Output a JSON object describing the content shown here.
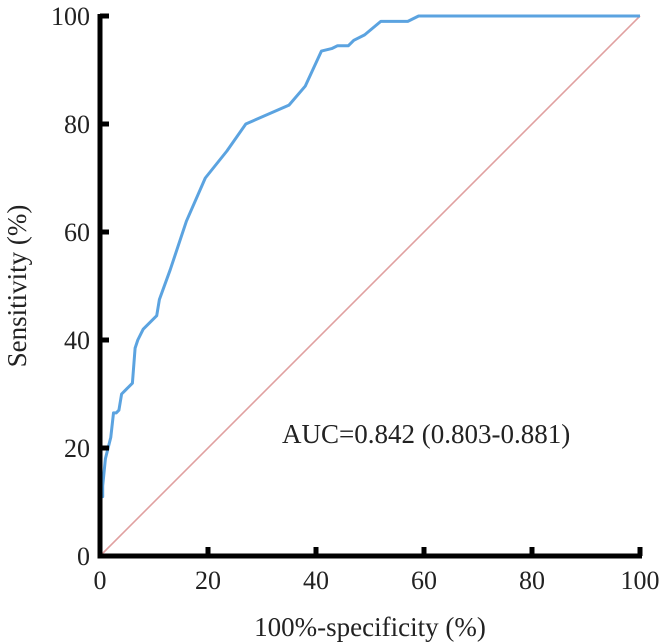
{
  "chart_data": {
    "type": "line",
    "title": "",
    "xlabel": "100%-specificity (%)",
    "ylabel": "Sensitivity (%)",
    "xlim": [
      0,
      100
    ],
    "ylim": [
      0,
      100
    ],
    "x_ticks": [
      "0",
      "20",
      "40",
      "60",
      "80",
      "100"
    ],
    "y_ticks": [
      "0",
      "20",
      "40",
      "60",
      "80",
      "100"
    ],
    "grid": false,
    "annotation": "AUC=0.842 (0.803-0.881)",
    "colors": {
      "roc": "#5ba3e0",
      "reference": "#e0a0a0",
      "axes": "#000000"
    },
    "series": [
      {
        "x": [
          0,
          0,
          0.5,
          0.5,
          1,
          1.5,
          2,
          2.5,
          3,
          3.5,
          4,
          4.5,
          5,
          6,
          6.5,
          7,
          8,
          10.5,
          11,
          13,
          16,
          19.5,
          23.5,
          27,
          35,
          38,
          41,
          43,
          44,
          46,
          47,
          49,
          52,
          57,
          59,
          100
        ],
        "y": [
          0,
          11,
          11,
          13,
          18,
          20,
          22,
          26.5,
          26.5,
          27,
          30,
          30.5,
          31,
          32,
          38.5,
          40,
          42,
          44.5,
          47.5,
          53,
          62,
          70,
          75,
          80,
          83.5,
          87,
          93.5,
          94,
          94.5,
          94.5,
          95.5,
          96.5,
          99,
          99,
          100,
          100
        ]
      },
      {
        "x": [
          0,
          100
        ],
        "y": [
          0,
          100
        ]
      }
    ]
  }
}
